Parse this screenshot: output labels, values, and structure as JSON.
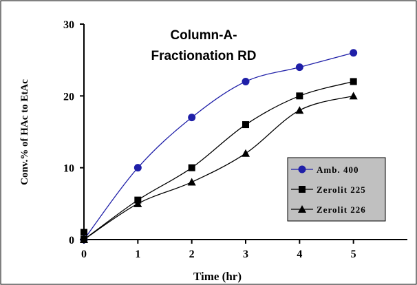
{
  "chart_data": {
    "type": "line",
    "title_lines": [
      "Column-A-",
      "Fractionation RD"
    ],
    "xlabel": "Time (hr)",
    "ylabel": "Conv.% of HAc to EtAc",
    "xlim": [
      0,
      6
    ],
    "ylim": [
      0,
      30
    ],
    "x_ticks": [
      0,
      1,
      2,
      3,
      4,
      5
    ],
    "y_ticks": [
      0,
      10,
      20,
      30
    ],
    "grid": false,
    "legend_position": "lower-right",
    "series": [
      {
        "name": "Amb. 400",
        "marker": "circle",
        "color": "#1f1fa8",
        "x": [
          0,
          1,
          2,
          3,
          4,
          5
        ],
        "y": [
          0,
          10,
          17,
          22,
          24,
          26
        ]
      },
      {
        "name": "Zerolit 225",
        "marker": "square",
        "color": "#000000",
        "x": [
          0,
          0,
          1,
          2,
          3,
          4,
          5
        ],
        "y": [
          1,
          0,
          5.5,
          10,
          16,
          20,
          22
        ]
      },
      {
        "name": "Zerolit 226",
        "marker": "triangle",
        "color": "#000000",
        "x": [
          0,
          1,
          2,
          3,
          4,
          5
        ],
        "y": [
          0,
          5,
          8,
          12,
          18,
          20
        ]
      }
    ]
  },
  "colors": {
    "legend_background": "#c0c0c0",
    "border": "#000000"
  }
}
